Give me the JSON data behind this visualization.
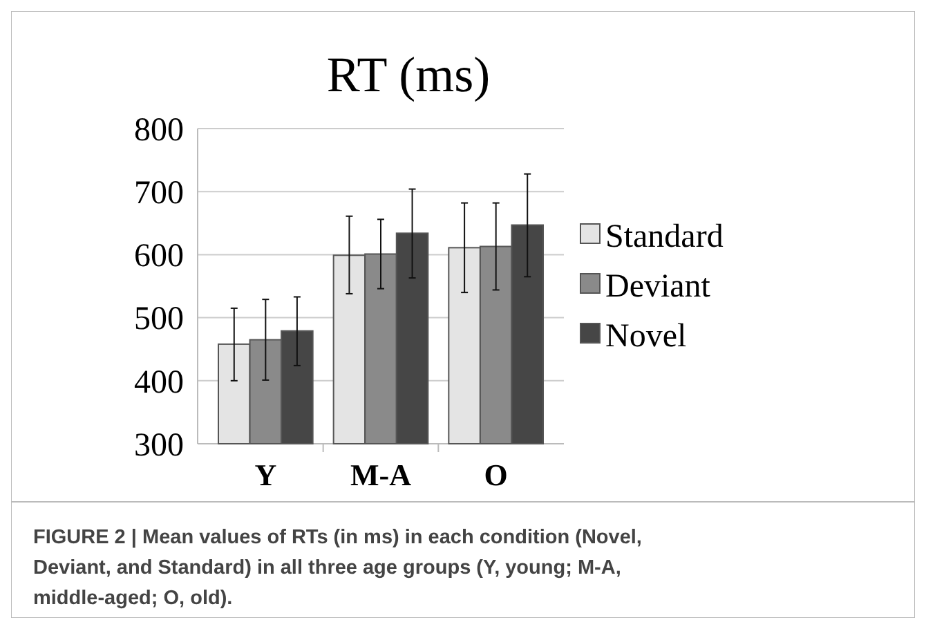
{
  "chart_data": {
    "type": "bar",
    "title": "RT (ms)",
    "categories": [
      "Y",
      "M-A",
      "O"
    ],
    "series": [
      {
        "name": "Standard",
        "color": "#e4e4e4",
        "values": [
          458,
          599,
          611
        ],
        "errors": [
          [
            400,
            515
          ],
          [
            538,
            661
          ],
          [
            540,
            682
          ]
        ]
      },
      {
        "name": "Deviant",
        "color": "#8a8a8a",
        "values": [
          465,
          601,
          613
        ],
        "errors": [
          [
            401,
            529
          ],
          [
            546,
            656
          ],
          [
            544,
            682
          ]
        ]
      },
      {
        "name": "Novel",
        "color": "#464646",
        "values": [
          479,
          634,
          647
        ],
        "errors": [
          [
            424,
            533
          ],
          [
            563,
            704
          ],
          [
            565,
            728
          ]
        ]
      }
    ],
    "ylim": [
      300,
      800
    ],
    "yticks": [
      300,
      400,
      500,
      600,
      700,
      800
    ],
    "grid": "y",
    "legend": "right",
    "annotations": [
      "FIGURE 2 | Mean values of RTs (in ms) in each condition (Novel, Deviant, and Standard) in all three age groups (Y, young; M-A, middle-aged; O, old)."
    ]
  }
}
